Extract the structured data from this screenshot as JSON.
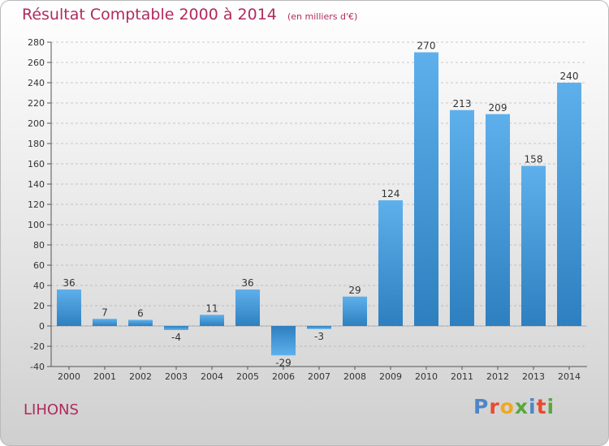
{
  "header": {
    "title": "Résultat Comptable 2000 à 2014",
    "subtitle": "(en milliers d'€)"
  },
  "footer": {
    "commune": "LIHONS",
    "logo_text": "Proxiti",
    "logo_colors": [
      "#4f86c6",
      "#e84a2f",
      "#f2a81d",
      "#5aa83c",
      "#4f86c6",
      "#e84a2f",
      "#5aa83c"
    ]
  },
  "colors": {
    "title": "#b02a5e",
    "bar_light": "#5eb0ec",
    "bar_dark": "#2e7fbf",
    "axis": "#555555",
    "grid": "#999999"
  },
  "chart_data": {
    "type": "bar",
    "title": "Résultat Comptable 2000 à 2014",
    "categories": [
      "2000",
      "2001",
      "2002",
      "2003",
      "2004",
      "2005",
      "2006",
      "2007",
      "2008",
      "2009",
      "2010",
      "2011",
      "2012",
      "2013",
      "2014"
    ],
    "values": [
      36,
      7,
      6,
      -4,
      11,
      36,
      -29,
      -3,
      29,
      124,
      270,
      213,
      209,
      158,
      240
    ],
    "ylim": [
      -40,
      280
    ],
    "yticks": [
      -40,
      -20,
      0,
      20,
      40,
      60,
      80,
      100,
      120,
      140,
      160,
      180,
      200,
      220,
      240,
      260,
      280
    ],
    "grid": true,
    "xlabel": "",
    "ylabel": ""
  }
}
